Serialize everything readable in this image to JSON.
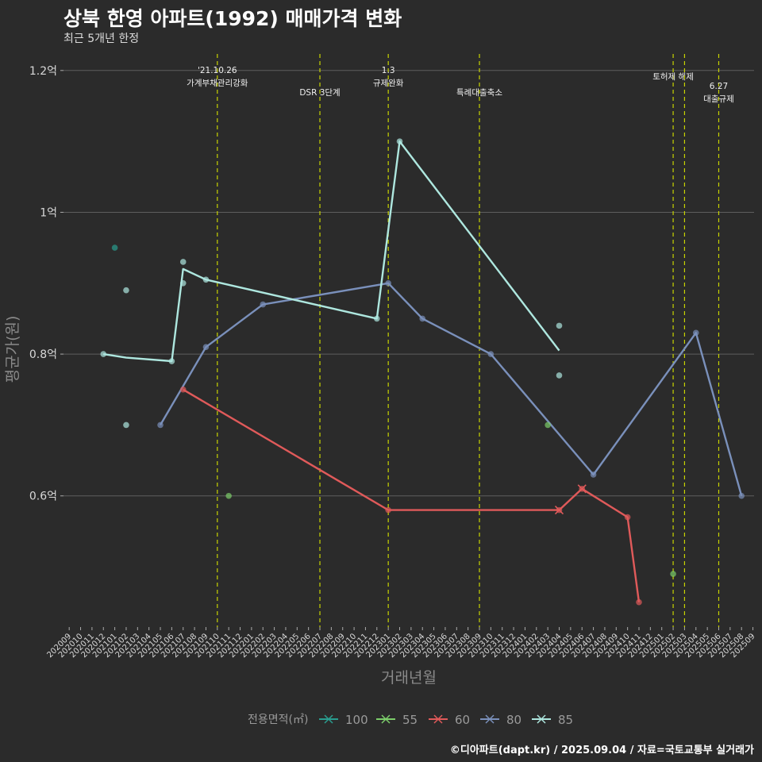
{
  "title": "상북 한영 아파트(1992) 매매가격 변화",
  "subtitle": "최근 5개년 한정",
  "caption": "©디아파트(dapt.kr) / 2025.09.04 / 자료=국토교통부 실거래가",
  "colors": {
    "background": "#2b2b2b",
    "grid": "#5e5e5e",
    "event_line": "#c8d400",
    "s100": "#2a9d8f",
    "s55": "#7ccd6a",
    "s60": "#e05a5a",
    "s80": "#7a90bb",
    "s85": "#aee7df"
  },
  "chart_data": {
    "type": "line",
    "xlabel": "거래년월",
    "ylabel": "평균가(원)",
    "x_categories": [
      "202009",
      "202010",
      "202011",
      "202012",
      "202101",
      "202102",
      "202103",
      "202104",
      "202105",
      "202106",
      "202107",
      "202108",
      "202109",
      "202110",
      "202111",
      "202112",
      "202201",
      "202202",
      "202203",
      "202204",
      "202205",
      "202206",
      "202207",
      "202208",
      "202209",
      "202210",
      "202211",
      "202212",
      "202301",
      "202302",
      "202303",
      "202304",
      "202305",
      "202306",
      "202307",
      "202308",
      "202309",
      "202310",
      "202311",
      "202312",
      "202401",
      "202402",
      "202403",
      "202404",
      "202405",
      "202406",
      "202407",
      "202408",
      "202409",
      "202410",
      "202411",
      "202412",
      "202501",
      "202502",
      "202503",
      "202504",
      "202505",
      "202506",
      "202507",
      "202508",
      "202509"
    ],
    "y_ticks": [
      0.6,
      0.8,
      1.0,
      1.2
    ],
    "y_tick_labels": [
      "0.6억",
      "0.8억",
      "1억",
      "1.2억"
    ],
    "ylim": [
      0.415,
      1.23
    ],
    "grid": true,
    "legend_title": "전용면적(㎡)",
    "legend_position": "bottom",
    "legend_entries": [
      "100",
      "55",
      "60",
      "80",
      "85"
    ],
    "events": [
      {
        "x": "202110",
        "label_lines": [
          "'21.10.26",
          "가계부채관리강화"
        ]
      },
      {
        "x": "202207",
        "label_lines": [
          "DSR 3단계"
        ]
      },
      {
        "x": "202301",
        "label_lines": [
          "1.3",
          "규제완화"
        ]
      },
      {
        "x": "202309",
        "label_lines": [
          "특례대출축소"
        ]
      },
      {
        "x": "202502",
        "label_lines": [
          "토허제 해제"
        ]
      },
      {
        "x": "202503",
        "label_lines": []
      },
      {
        "x": "202506",
        "label_lines": [
          "6.27",
          "대출규제"
        ]
      }
    ],
    "series": [
      {
        "name": "100",
        "color_key": "s100",
        "line": [],
        "points": [
          {
            "x": "202101",
            "y": 0.95
          }
        ]
      },
      {
        "name": "55",
        "color_key": "s55",
        "line": [],
        "points": [
          {
            "x": "202111",
            "y": 0.6
          },
          {
            "x": "202403",
            "y": 0.7
          },
          {
            "x": "202502",
            "y": 0.49
          }
        ]
      },
      {
        "name": "60",
        "color_key": "s60",
        "line": [
          {
            "x": "202107",
            "y": 0.75
          },
          {
            "x": "202301",
            "y": 0.58
          },
          {
            "x": "202404",
            "y": 0.58
          },
          {
            "x": "202406",
            "y": 0.61
          },
          {
            "x": "202410",
            "y": 0.57
          },
          {
            "x": "202411",
            "y": 0.45
          }
        ],
        "points": [
          {
            "x": "202107",
            "y": 0.75
          },
          {
            "x": "202301",
            "y": 0.58
          },
          {
            "x": "202404",
            "y": 0.58
          },
          {
            "x": "202406",
            "y": 0.61
          },
          {
            "x": "202410",
            "y": 0.57
          },
          {
            "x": "202411",
            "y": 0.45
          }
        ],
        "cross_points": [
          {
            "x": "202404",
            "y": 0.58
          },
          {
            "x": "202406",
            "y": 0.61
          }
        ]
      },
      {
        "name": "80",
        "color_key": "s80",
        "line": [
          {
            "x": "202105",
            "y": 0.7
          },
          {
            "x": "202109",
            "y": 0.81
          },
          {
            "x": "202202",
            "y": 0.87
          },
          {
            "x": "202301",
            "y": 0.9
          },
          {
            "x": "202304",
            "y": 0.85
          },
          {
            "x": "202310",
            "y": 0.8
          },
          {
            "x": "202407",
            "y": 0.63
          },
          {
            "x": "202504",
            "y": 0.83
          },
          {
            "x": "202508",
            "y": 0.6
          }
        ],
        "points": [
          {
            "x": "202105",
            "y": 0.7
          },
          {
            "x": "202109",
            "y": 0.81
          },
          {
            "x": "202202",
            "y": 0.87
          },
          {
            "x": "202301",
            "y": 0.9
          },
          {
            "x": "202304",
            "y": 0.85
          },
          {
            "x": "202310",
            "y": 0.8
          },
          {
            "x": "202407",
            "y": 0.63
          },
          {
            "x": "202504",
            "y": 0.83
          },
          {
            "x": "202508",
            "y": 0.6
          }
        ]
      },
      {
        "name": "85",
        "color_key": "s85",
        "line": [
          {
            "x": "202012",
            "y": 0.8
          },
          {
            "x": "202102",
            "y": 0.795
          },
          {
            "x": "202106",
            "y": 0.79
          },
          {
            "x": "202107",
            "y": 0.92
          },
          {
            "x": "202109",
            "y": 0.905
          },
          {
            "x": "202212",
            "y": 0.85
          },
          {
            "x": "202302",
            "y": 1.1
          },
          {
            "x": "202404",
            "y": 0.805
          }
        ],
        "points": [
          {
            "x": "202012",
            "y": 0.8
          },
          {
            "x": "202102",
            "y": 0.7
          },
          {
            "x": "202102",
            "y": 0.89
          },
          {
            "x": "202106",
            "y": 0.79
          },
          {
            "x": "202107",
            "y": 0.9
          },
          {
            "x": "202107",
            "y": 0.93
          },
          {
            "x": "202109",
            "y": 0.905
          },
          {
            "x": "202212",
            "y": 0.85
          },
          {
            "x": "202302",
            "y": 1.1
          },
          {
            "x": "202404",
            "y": 0.84
          },
          {
            "x": "202404",
            "y": 0.77
          }
        ]
      }
    ]
  }
}
